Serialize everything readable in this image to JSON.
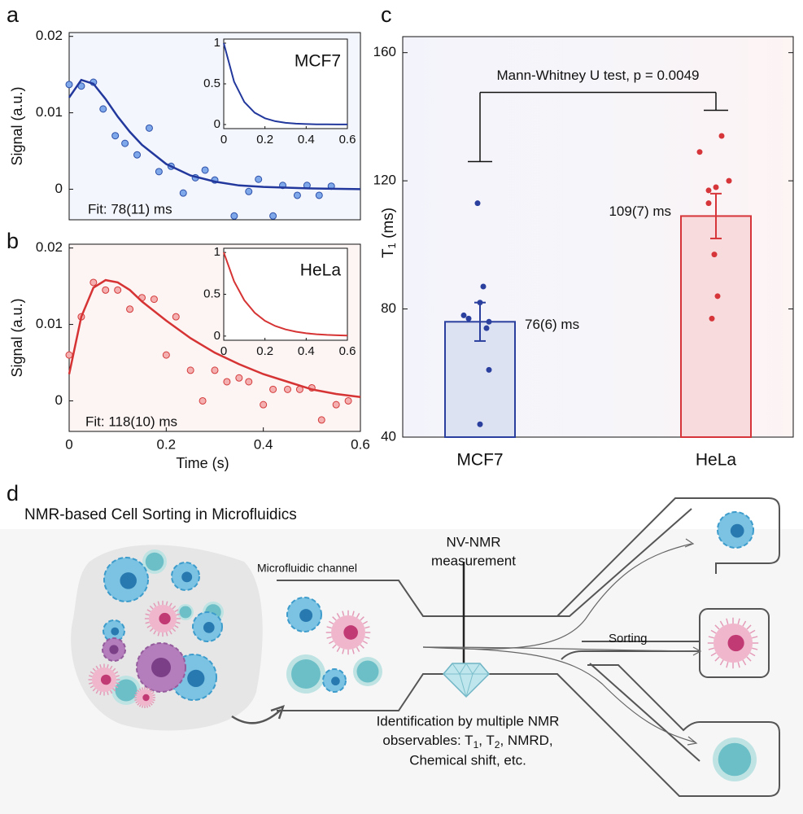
{
  "chart_data": [
    {
      "letter": "a",
      "type": "scatter",
      "ylabel": "Signal (a.u.)",
      "xlim": [
        0,
        0.6
      ],
      "ylim": [
        -0.004,
        0.0205
      ],
      "yticks": [
        0,
        0.01,
        0.02
      ],
      "points": {
        "color": "#2c4fa8",
        "x": [
          0,
          0.025,
          0.05,
          0.07,
          0.095,
          0.115,
          0.14,
          0.165,
          0.185,
          0.21,
          0.235,
          0.26,
          0.28,
          0.3,
          0.34,
          0.37,
          0.39,
          0.42,
          0.44,
          0.47,
          0.49,
          0.515,
          0.54
        ],
        "values": [
          0.0137,
          0.0135,
          0.014,
          0.0105,
          0.007,
          0.006,
          0.0045,
          0.008,
          0.0023,
          0.003,
          -0.0005,
          0.0015,
          0.0025,
          0.0012,
          -0.0035,
          -0.0003,
          0.0013,
          -0.0035,
          0.0005,
          -0.0008,
          0.0005,
          -0.0008,
          0.0004
        ]
      },
      "fit": {
        "color": "#22389c",
        "x": [
          0,
          0.025,
          0.05,
          0.075,
          0.1,
          0.125,
          0.15,
          0.2,
          0.25,
          0.3,
          0.35,
          0.4,
          0.5,
          0.6
        ],
        "values": [
          0.012,
          0.0143,
          0.0138,
          0.0118,
          0.0095,
          0.0075,
          0.0058,
          0.0033,
          0.0018,
          0.001,
          0.0005,
          0.0003,
          0.0001,
          0
        ]
      },
      "annotation": "Fit: 78(11) ms",
      "inset": {
        "label": "MCF7",
        "xlim": [
          0,
          0.6
        ],
        "ylim": [
          -0.05,
          1.05
        ],
        "xticks": [
          0,
          0.2,
          0.4,
          0.6
        ],
        "yticks": [
          0,
          0.5,
          1
        ],
        "x": [
          0,
          0.05,
          0.1,
          0.15,
          0.2,
          0.25,
          0.3,
          0.35,
          0.4,
          0.45,
          0.5,
          0.55,
          0.6
        ],
        "values": [
          1,
          0.527,
          0.277,
          0.146,
          0.077,
          0.041,
          0.021,
          0.011,
          0.006,
          0.003,
          0.002,
          0.001,
          0.0005
        ]
      }
    },
    {
      "letter": "b",
      "type": "scatter",
      "ylabel": "Signal (a.u.)",
      "xlabel": "Time (s)",
      "xlim": [
        0,
        0.6
      ],
      "xticks": [
        0,
        0.2,
        0.4,
        0.6
      ],
      "ylim": [
        -0.004,
        0.0205
      ],
      "yticks": [
        0,
        0.01,
        0.02
      ],
      "points": {
        "color": "#d43a3a",
        "x": [
          0,
          0.025,
          0.05,
          0.075,
          0.1,
          0.125,
          0.15,
          0.175,
          0.2,
          0.22,
          0.25,
          0.275,
          0.3,
          0.325,
          0.35,
          0.37,
          0.4,
          0.42,
          0.45,
          0.475,
          0.5,
          0.52,
          0.55,
          0.575
        ],
        "values": [
          0.006,
          0.011,
          0.0155,
          0.0145,
          0.0145,
          0.012,
          0.0135,
          0.0133,
          0.006,
          0.011,
          0.004,
          0,
          0.004,
          0.0025,
          0.003,
          0.0025,
          -0.0005,
          0.0015,
          0.0015,
          0.0015,
          0.0017,
          -0.0025,
          -0.0005,
          0
        ]
      },
      "fit": {
        "color": "#d63434",
        "x": [
          0,
          0.025,
          0.05,
          0.075,
          0.1,
          0.125,
          0.15,
          0.2,
          0.25,
          0.3,
          0.35,
          0.4,
          0.45,
          0.5,
          0.55,
          0.6
        ],
        "values": [
          0.0035,
          0.011,
          0.0148,
          0.0158,
          0.0155,
          0.0145,
          0.013,
          0.0105,
          0.0082,
          0.0063,
          0.0048,
          0.0035,
          0.0025,
          0.0015,
          0.0009,
          0.0005
        ]
      },
      "annotation": "Fit: 118(10) ms",
      "inset": {
        "label": "HeLa",
        "xlim": [
          0,
          0.6
        ],
        "ylim": [
          -0.05,
          1.05
        ],
        "xticks": [
          0,
          0.2,
          0.4,
          0.6
        ],
        "yticks": [
          0,
          0.5,
          1
        ],
        "x": [
          0,
          0.05,
          0.1,
          0.15,
          0.2,
          0.25,
          0.3,
          0.35,
          0.4,
          0.45,
          0.5,
          0.55,
          0.6
        ],
        "values": [
          1,
          0.655,
          0.428,
          0.28,
          0.183,
          0.12,
          0.079,
          0.052,
          0.034,
          0.022,
          0.014,
          0.009,
          0.006
        ]
      }
    },
    {
      "letter": "c",
      "type": "bar",
      "ylabel": [
        "T",
        "1",
        " (ms)"
      ],
      "ylim": [
        40,
        165
      ],
      "yticks": [
        40,
        80,
        120,
        160
      ],
      "categories": [
        "MCF7",
        "HeLa"
      ],
      "colors": [
        "#2a3f9e",
        "#d6363a"
      ],
      "values": [
        76,
        109
      ],
      "errors": [
        6,
        7
      ],
      "value_labels": [
        "76(6) ms",
        "109(7) ms"
      ],
      "points": [
        [
          113,
          87,
          82,
          78,
          77,
          76,
          74,
          61,
          44
        ],
        [
          134,
          129,
          120,
          118,
          117,
          113,
          97,
          84,
          77
        ]
      ],
      "whiskers": [
        126,
        142
      ],
      "annotation": "Mann-Whitney U test, p = 0.0049"
    }
  ],
  "diagram": {
    "letter": "d",
    "title": "NMR-based Cell Sorting in Microfluidics",
    "channel_label": "Microfluidic channel",
    "measurement_label": [
      "NV-NMR",
      "measurement"
    ],
    "sorting_label": "Sorting",
    "identification": [
      "Identification by multiple NMR",
      [
        "observables: T",
        "1",
        ", T",
        "2",
        ", NMRD,"
      ],
      "Chemical shift, etc."
    ]
  }
}
